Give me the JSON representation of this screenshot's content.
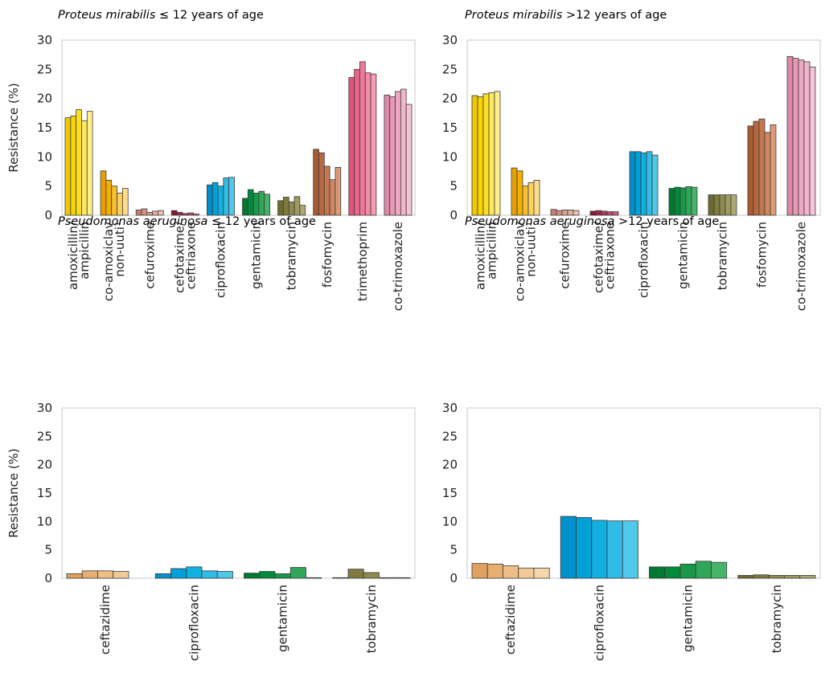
{
  "chart_data": [
    {
      "type": "bar",
      "title_italic": "Proteus mirabilis",
      "title_rest": " ≤ 12 years of age",
      "ylabel": "Resistance (%)",
      "ylim": [
        0,
        30
      ],
      "yticks": [
        "0",
        "5",
        "10",
        "15",
        "20",
        "25",
        "30"
      ],
      "grid": false,
      "categories": [
        {
          "label": [
            "amoxicillin/",
            "ampicillin"
          ],
          "colors": [
            "#F0C800",
            "#F8D400",
            "#FDE020",
            "#FFE85A",
            "#FFF08A"
          ],
          "values": [
            16.7,
            17.0,
            18.1,
            16.2,
            17.8
          ]
        },
        {
          "label": [
            "co-amoxiclav",
            "non-uuti¹"
          ],
          "colors": [
            "#E8A000",
            "#F3B000",
            "#F8C030",
            "#FCD060",
            "#FFDD88"
          ],
          "values": [
            7.6,
            6.0,
            5.0,
            3.8,
            4.6
          ]
        },
        {
          "label": [
            "cefuroxime"
          ],
          "colors": [
            "#C98070",
            "#D49080",
            "#DDA090",
            "#E5B0A0",
            "#EEC2B2"
          ],
          "values": [
            0.9,
            1.1,
            0.5,
            0.7,
            0.8
          ]
        },
        {
          "label": [
            "cefotaxime/",
            "ceftriaxone"
          ],
          "colors": [
            "#8A1838",
            "#9A2848",
            "#AA3858",
            "#BA4C6C",
            "#CA6080"
          ],
          "values": [
            0.8,
            0.5,
            0.3,
            0.4,
            0.2
          ]
        },
        {
          "label": [
            "ciprofloxacin"
          ],
          "colors": [
            "#0090CC",
            "#00A0D8",
            "#10B0E0",
            "#30BCE6",
            "#50C8EC"
          ],
          "values": [
            5.2,
            5.6,
            5.0,
            6.4,
            6.5
          ]
        },
        {
          "label": [
            "gentamicin"
          ],
          "colors": [
            "#007A30",
            "#008A3A",
            "#189848",
            "#30A658",
            "#48B46A"
          ],
          "values": [
            2.9,
            4.4,
            3.8,
            4.1,
            3.6
          ]
        },
        {
          "label": [
            "tobramycin"
          ],
          "colors": [
            "#6E6A30",
            "#7E7A40",
            "#8E8A50",
            "#9E9A62",
            "#AEAA76"
          ],
          "values": [
            2.5,
            3.1,
            2.3,
            3.2,
            1.7
          ]
        },
        {
          "label": [
            "fosfomycin"
          ],
          "colors": [
            "#A85A30",
            "#B86840",
            "#C47850",
            "#D08862",
            "#DC9A76"
          ],
          "values": [
            11.3,
            10.7,
            8.4,
            6.1,
            8.2
          ]
        },
        {
          "label": [
            "trimethoprim"
          ],
          "colors": [
            "#E05578",
            "#E86688",
            "#EE7898",
            "#F48AA8",
            "#F89CB6"
          ],
          "values": [
            23.6,
            25.0,
            26.3,
            24.4,
            24.2
          ]
        },
        {
          "label": [
            "co-trimoxazole"
          ],
          "colors": [
            "#E088A8",
            "#E898B6",
            "#EEA8C2",
            "#F2B6CC",
            "#F6C4D6"
          ],
          "values": [
            20.6,
            20.3,
            21.2,
            21.6,
            19.0
          ]
        }
      ]
    },
    {
      "type": "bar",
      "title_italic": "Proteus mirabilis",
      "title_rest": " >12 years of age",
      "ylabel": "",
      "ylim": [
        0,
        30
      ],
      "yticks": [
        "0",
        "5",
        "10",
        "15",
        "20",
        "25",
        "30"
      ],
      "grid": false,
      "categories": [
        {
          "label": [
            "amoxicillin/",
            "ampicillin"
          ],
          "colors": [
            "#F0C800",
            "#F8D400",
            "#FDE020",
            "#FFE85A",
            "#FFF08A"
          ],
          "values": [
            20.5,
            20.3,
            20.8,
            21.0,
            21.2
          ]
        },
        {
          "label": [
            "co-amoxiclav",
            "non-uuti¹"
          ],
          "colors": [
            "#E8A000",
            "#F3B000",
            "#F8C030",
            "#FCD060",
            "#FFDD88"
          ],
          "values": [
            8.1,
            7.6,
            5.0,
            5.6,
            6.0
          ]
        },
        {
          "label": [
            "cefuroxime"
          ],
          "colors": [
            "#C98070",
            "#D49080",
            "#DDA090",
            "#E5B0A0",
            "#EEC2B2"
          ],
          "values": [
            1.0,
            0.8,
            0.9,
            0.9,
            0.8
          ]
        },
        {
          "label": [
            "cefotaxime/",
            "ceftriaxone"
          ],
          "colors": [
            "#8A1838",
            "#9A2848",
            "#AA3858",
            "#BA4C6C",
            "#CA6080"
          ],
          "values": [
            0.7,
            0.8,
            0.7,
            0.6,
            0.6
          ]
        },
        {
          "label": [
            "ciprofloxacin"
          ],
          "colors": [
            "#0090CC",
            "#00A0D8",
            "#10B0E0",
            "#30BCE6",
            "#50C8EC"
          ],
          "values": [
            10.9,
            10.9,
            10.7,
            10.9,
            10.3
          ]
        },
        {
          "label": [
            "gentamicin"
          ],
          "colors": [
            "#007A30",
            "#008A3A",
            "#189848",
            "#30A658",
            "#48B46A"
          ],
          "values": [
            4.6,
            4.8,
            4.7,
            4.9,
            4.8
          ]
        },
        {
          "label": [
            "tobramycin"
          ],
          "colors": [
            "#6E6A30",
            "#7E7A40",
            "#8E8A50",
            "#9E9A62",
            "#AEAA76"
          ],
          "values": [
            3.5,
            3.5,
            3.5,
            3.5,
            3.5
          ]
        },
        {
          "label": [
            "fosfomycin"
          ],
          "colors": [
            "#A85A30",
            "#B86840",
            "#C47850",
            "#D08862",
            "#DC9A76"
          ],
          "values": [
            15.3,
            16.1,
            16.5,
            14.2,
            15.5
          ]
        },
        {
          "label": [
            "co-trimoxazole"
          ],
          "colors": [
            "#E088A8",
            "#E898B6",
            "#EEA8C2",
            "#F2B6CC",
            "#F6C4D6"
          ],
          "values": [
            27.2,
            26.9,
            26.6,
            26.3,
            25.4
          ]
        }
      ]
    },
    {
      "type": "bar",
      "title_italic": "Pseudomonas aeruginosa",
      "title_rest": " ≤ 12 years of age",
      "ylabel": "Resistance (%)",
      "ylim": [
        0,
        30
      ],
      "yticks": [
        "0",
        "5",
        "10",
        "15",
        "20",
        "25",
        "30"
      ],
      "grid": false,
      "categories": [
        {
          "label": [
            "ceftazidime"
          ],
          "colors": [
            "#E0A060",
            "#E8B070",
            "#EEBE84",
            "#F2CA98",
            "#F6D6AC"
          ],
          "values": [
            0.8,
            1.3,
            1.3,
            1.2,
            0.0
          ]
        },
        {
          "label": [
            "ciprofloxacin"
          ],
          "colors": [
            "#0090CC",
            "#00A0D8",
            "#10B0E0",
            "#30BCE6",
            "#50C8EC"
          ],
          "values": [
            0.8,
            1.7,
            2.0,
            1.3,
            1.2
          ]
        },
        {
          "label": [
            "gentamicin"
          ],
          "colors": [
            "#007A30",
            "#008A3A",
            "#189848",
            "#30A658",
            "#48B46A"
          ],
          "values": [
            0.9,
            1.2,
            0.8,
            1.9,
            0.1
          ]
        },
        {
          "label": [
            "tobramycin"
          ],
          "colors": [
            "#6E6A30",
            "#7E7A40",
            "#8E8A50",
            "#9E9A62",
            "#AEAA76"
          ],
          "values": [
            0.1,
            1.6,
            1.0,
            0.1,
            0.1
          ]
        }
      ]
    },
    {
      "type": "bar",
      "title_italic": "Pseudomonas aeruginosa",
      "title_rest": " >12 years of age",
      "ylabel": "",
      "ylim": [
        0,
        30
      ],
      "yticks": [
        "0",
        "5",
        "10",
        "15",
        "20",
        "25",
        "30"
      ],
      "grid": false,
      "categories": [
        {
          "label": [
            "ceftazidime"
          ],
          "colors": [
            "#E0A060",
            "#E8B070",
            "#EEBE84",
            "#F2CA98",
            "#F6D6AC"
          ],
          "values": [
            2.6,
            2.5,
            2.2,
            1.8,
            1.8
          ]
        },
        {
          "label": [
            "ciprofloxacin"
          ],
          "colors": [
            "#0090CC",
            "#00A0D8",
            "#10B0E0",
            "#30BCE6",
            "#50C8EC"
          ],
          "values": [
            10.9,
            10.7,
            10.2,
            10.1,
            10.1
          ]
        },
        {
          "label": [
            "gentamicin"
          ],
          "colors": [
            "#007A30",
            "#008A3A",
            "#189848",
            "#30A658",
            "#48B46A"
          ],
          "values": [
            2.0,
            2.0,
            2.5,
            3.0,
            2.8
          ]
        },
        {
          "label": [
            "tobramycin"
          ],
          "colors": [
            "#6E6A30",
            "#7E7A40",
            "#8E8A50",
            "#9E9A62",
            "#AEAA76"
          ],
          "values": [
            0.5,
            0.6,
            0.5,
            0.5,
            0.5
          ]
        }
      ]
    }
  ]
}
